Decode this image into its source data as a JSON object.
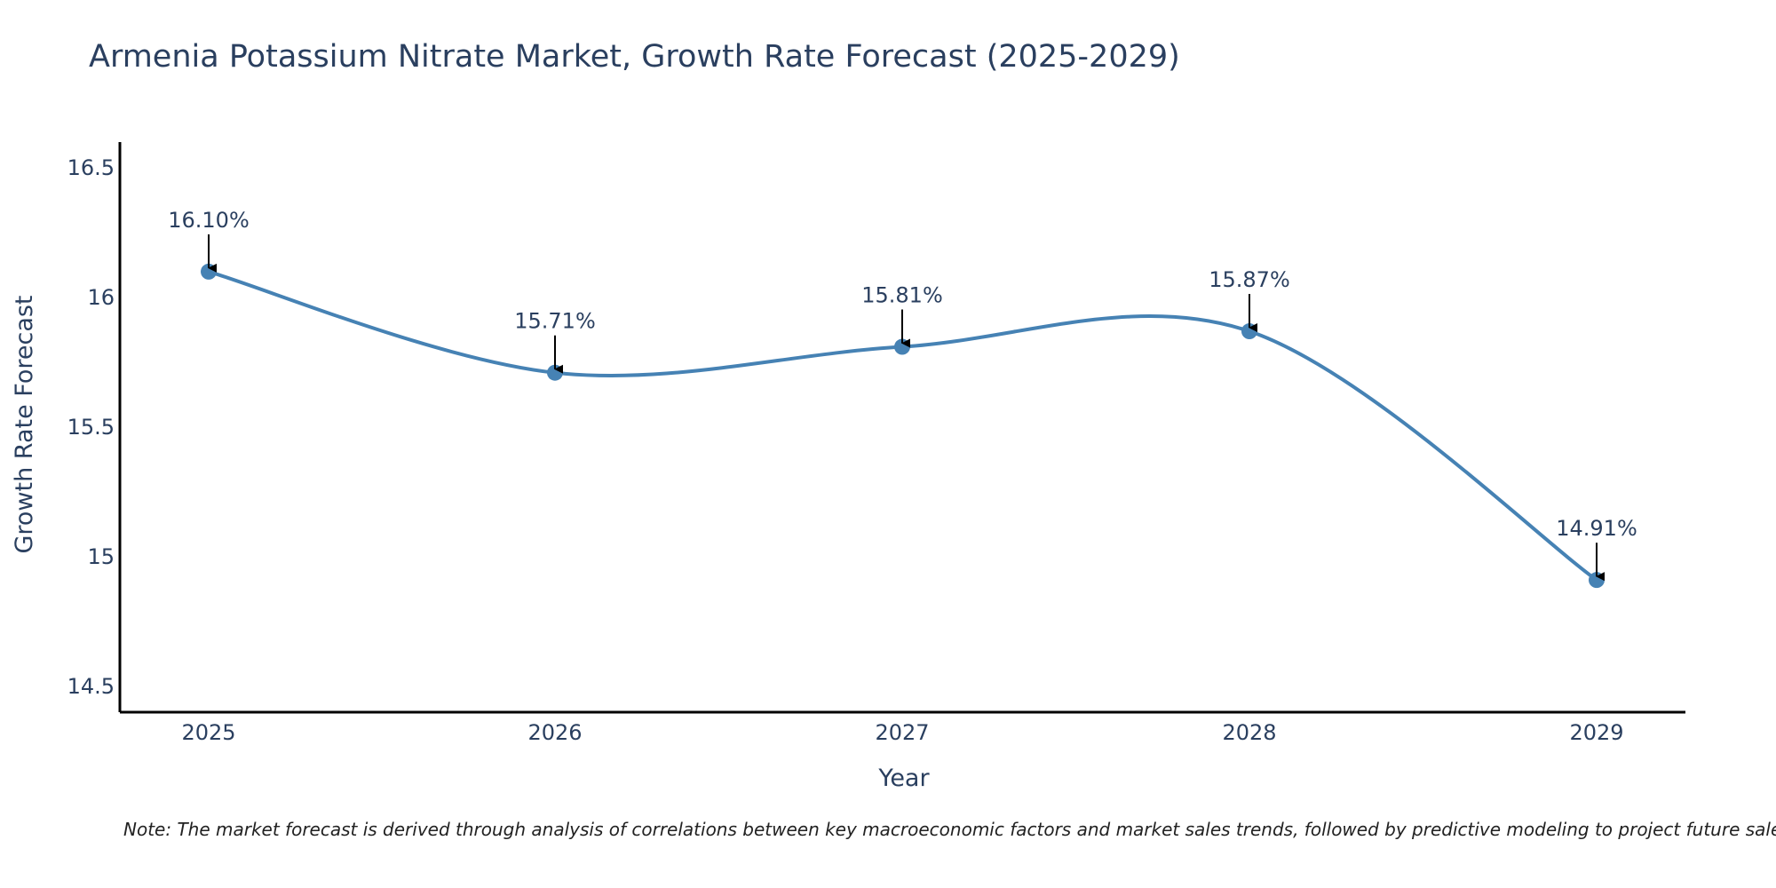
{
  "chart_data": {
    "type": "line",
    "title": "Armenia Potassium Nitrate Market, Growth Rate Forecast (2025-2029)",
    "xlabel": "Year",
    "ylabel": "Growth Rate Forecast",
    "categories": [
      "2025",
      "2026",
      "2027",
      "2028",
      "2029"
    ],
    "values": [
      16.1,
      15.71,
      15.81,
      15.87,
      14.91
    ],
    "data_labels": [
      "16.10%",
      "15.71%",
      "15.81%",
      "15.87%",
      "14.91%"
    ],
    "ylim": [
      14.4,
      16.6
    ],
    "yticks": [
      14.5,
      15,
      15.5,
      16,
      16.5
    ],
    "ytick_labels": [
      "14.5",
      "15",
      "15.5",
      "16",
      "16.5"
    ],
    "grid": false,
    "legend": "none",
    "note": "Note: The market forecast is derived through analysis of correlations between key macroeconomic factors and market sales trends, followed by predictive modeling to project future sales.",
    "colors": {
      "line": "#4682b4",
      "text": "#2a3f5f",
      "arrow": "#000000",
      "axis": "#000000"
    }
  }
}
